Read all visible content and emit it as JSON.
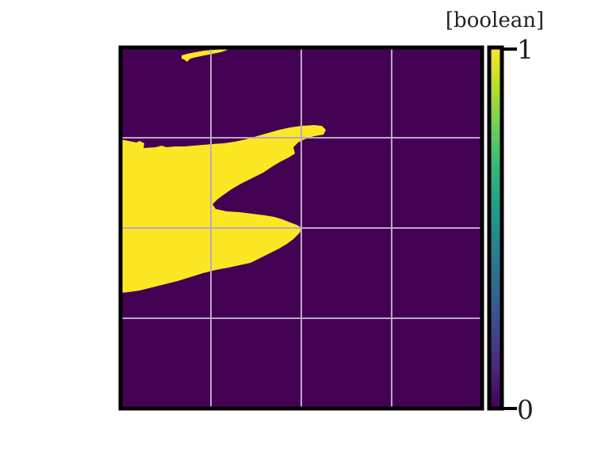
{
  "chart_data": {
    "type": "heatmap",
    "title": "",
    "xlabel": "",
    "ylabel": "",
    "grid": true,
    "grid_divisions": 4,
    "colormap": "viridis",
    "values_present": [
      0,
      1
    ],
    "colors": {
      "value_0": "#440154",
      "value_1": "#fde725",
      "grid": "#b9a9c6",
      "frame": "#000000"
    },
    "colorbar": {
      "label": "[boolean]",
      "ticks": [
        "0",
        "1"
      ],
      "range": [
        0,
        1
      ],
      "stops": [
        "#440154",
        "#482878",
        "#3e4989",
        "#31688e",
        "#26828e",
        "#1f9e89",
        "#35b779",
        "#6ece58",
        "#b5de2b",
        "#fde725"
      ]
    }
  }
}
